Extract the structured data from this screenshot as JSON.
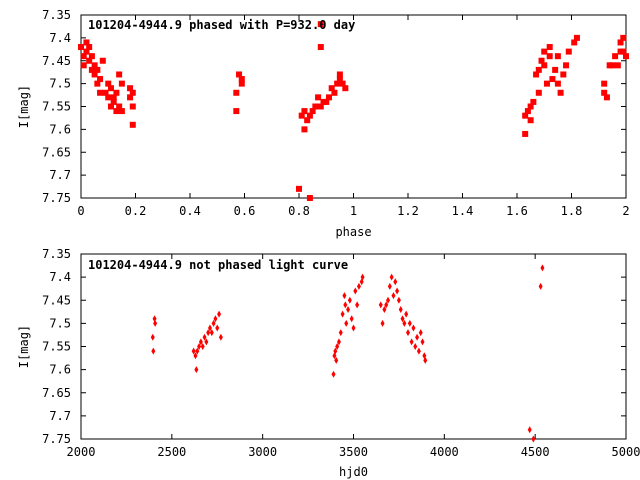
{
  "chart_data": [
    {
      "type": "scatter",
      "title": "101204-4944.9 phased with P=932.0 day",
      "xlabel": "phase",
      "ylabel": "I[mag]",
      "xlim": [
        0,
        2
      ],
      "ylim": [
        7.35,
        7.75
      ],
      "y_inverted": true,
      "x_ticks": [
        "0",
        "0.2",
        "0.4",
        "0.6",
        "0.8",
        "1",
        "1.2",
        "1.4",
        "1.6",
        "1.8",
        "2"
      ],
      "y_ticks": [
        "7.35",
        "7.4",
        "7.45",
        "7.5",
        "7.55",
        "7.6",
        "7.65",
        "7.7",
        "7.75"
      ],
      "marker_color": "#ff0000",
      "marker": "square",
      "grid": false,
      "points": [
        [
          0.0,
          7.42
        ],
        [
          0.01,
          7.44
        ],
        [
          0.01,
          7.46
        ],
        [
          0.02,
          7.41
        ],
        [
          0.02,
          7.43
        ],
        [
          0.03,
          7.45
        ],
        [
          0.03,
          7.42
        ],
        [
          0.04,
          7.47
        ],
        [
          0.04,
          7.44
        ],
        [
          0.05,
          7.46
        ],
        [
          0.05,
          7.48
        ],
        [
          0.06,
          7.47
        ],
        [
          0.06,
          7.5
        ],
        [
          0.07,
          7.49
        ],
        [
          0.07,
          7.52
        ],
        [
          0.08,
          7.45
        ],
        [
          0.09,
          7.52
        ],
        [
          0.1,
          7.5
        ],
        [
          0.1,
          7.53
        ],
        [
          0.11,
          7.51
        ],
        [
          0.11,
          7.55
        ],
        [
          0.12,
          7.54
        ],
        [
          0.12,
          7.53
        ],
        [
          0.13,
          7.52
        ],
        [
          0.13,
          7.56
        ],
        [
          0.14,
          7.48
        ],
        [
          0.14,
          7.55
        ],
        [
          0.15,
          7.56
        ],
        [
          0.15,
          7.5
        ],
        [
          0.18,
          7.51
        ],
        [
          0.18,
          7.53
        ],
        [
          0.19,
          7.52
        ],
        [
          0.19,
          7.55
        ],
        [
          0.19,
          7.59
        ],
        [
          0.57,
          7.52
        ],
        [
          0.57,
          7.56
        ],
        [
          0.58,
          7.48
        ],
        [
          0.59,
          7.49
        ],
        [
          0.59,
          7.5
        ],
        [
          0.8,
          7.73
        ],
        [
          0.81,
          7.57
        ],
        [
          0.82,
          7.56
        ],
        [
          0.82,
          7.6
        ],
        [
          0.83,
          7.58
        ],
        [
          0.84,
          7.57
        ],
        [
          0.84,
          7.75
        ],
        [
          0.85,
          7.56
        ],
        [
          0.86,
          7.55
        ],
        [
          0.87,
          7.53
        ],
        [
          0.88,
          7.55
        ],
        [
          0.88,
          7.42
        ],
        [
          0.88,
          7.37
        ],
        [
          0.89,
          7.54
        ],
        [
          0.9,
          7.54
        ],
        [
          0.91,
          7.53
        ],
        [
          0.92,
          7.51
        ],
        [
          0.93,
          7.52
        ],
        [
          0.94,
          7.5
        ],
        [
          0.95,
          7.49
        ],
        [
          0.95,
          7.48
        ],
        [
          0.96,
          7.5
        ],
        [
          0.97,
          7.51
        ],
        [
          1.63,
          7.61
        ],
        [
          1.63,
          7.57
        ],
        [
          1.64,
          7.56
        ],
        [
          1.65,
          7.58
        ],
        [
          1.65,
          7.55
        ],
        [
          1.66,
          7.54
        ],
        [
          1.67,
          7.48
        ],
        [
          1.68,
          7.52
        ],
        [
          1.68,
          7.47
        ],
        [
          1.69,
          7.45
        ],
        [
          1.7,
          7.43
        ],
        [
          1.7,
          7.46
        ],
        [
          1.71,
          7.5
        ],
        [
          1.72,
          7.44
        ],
        [
          1.72,
          7.42
        ],
        [
          1.73,
          7.49
        ],
        [
          1.74,
          7.47
        ],
        [
          1.75,
          7.44
        ],
        [
          1.75,
          7.5
        ],
        [
          1.76,
          7.52
        ],
        [
          1.77,
          7.48
        ],
        [
          1.78,
          7.46
        ],
        [
          1.79,
          7.43
        ],
        [
          1.81,
          7.41
        ],
        [
          1.82,
          7.4
        ],
        [
          1.92,
          7.52
        ],
        [
          1.92,
          7.5
        ],
        [
          1.93,
          7.53
        ],
        [
          1.94,
          7.46
        ],
        [
          1.95,
          7.46
        ],
        [
          1.96,
          7.44
        ],
        [
          1.97,
          7.46
        ],
        [
          1.98,
          7.43
        ],
        [
          1.98,
          7.41
        ],
        [
          1.99,
          7.4
        ],
        [
          1.99,
          7.43
        ],
        [
          2.0,
          7.44
        ]
      ]
    },
    {
      "type": "scatter",
      "title": "101204-4944.9 not phased light curve",
      "xlabel": "hjd0",
      "ylabel": "I[mag]",
      "xlim": [
        2000,
        5000
      ],
      "ylim": [
        7.35,
        7.75
      ],
      "y_inverted": true,
      "x_ticks": [
        "2000",
        "2500",
        "3000",
        "3500",
        "4000",
        "4500",
        "5000"
      ],
      "y_ticks": [
        "7.35",
        "7.4",
        "7.45",
        "7.5",
        "7.55",
        "7.6",
        "7.65",
        "7.7",
        "7.75"
      ],
      "marker_color": "#ff0000",
      "marker": "diamond",
      "grid": false,
      "points": [
        [
          2395,
          7.53
        ],
        [
          2398,
          7.56
        ],
        [
          2405,
          7.49
        ],
        [
          2408,
          7.5
        ],
        [
          2620,
          7.56
        ],
        [
          2630,
          7.57
        ],
        [
          2635,
          7.6
        ],
        [
          2640,
          7.56
        ],
        [
          2650,
          7.55
        ],
        [
          2660,
          7.54
        ],
        [
          2670,
          7.55
        ],
        [
          2680,
          7.53
        ],
        [
          2690,
          7.54
        ],
        [
          2700,
          7.52
        ],
        [
          2710,
          7.51
        ],
        [
          2720,
          7.52
        ],
        [
          2730,
          7.5
        ],
        [
          2740,
          7.49
        ],
        [
          2750,
          7.51
        ],
        [
          2760,
          7.48
        ],
        [
          2770,
          7.53
        ],
        [
          3390,
          7.61
        ],
        [
          3395,
          7.57
        ],
        [
          3400,
          7.56
        ],
        [
          3405,
          7.58
        ],
        [
          3410,
          7.55
        ],
        [
          3420,
          7.54
        ],
        [
          3430,
          7.52
        ],
        [
          3440,
          7.48
        ],
        [
          3450,
          7.44
        ],
        [
          3455,
          7.46
        ],
        [
          3460,
          7.5
        ],
        [
          3470,
          7.47
        ],
        [
          3480,
          7.45
        ],
        [
          3490,
          7.49
        ],
        [
          3500,
          7.51
        ],
        [
          3510,
          7.43
        ],
        [
          3520,
          7.46
        ],
        [
          3530,
          7.42
        ],
        [
          3545,
          7.41
        ],
        [
          3550,
          7.4
        ],
        [
          3650,
          7.46
        ],
        [
          3660,
          7.5
        ],
        [
          3670,
          7.47
        ],
        [
          3680,
          7.46
        ],
        [
          3690,
          7.45
        ],
        [
          3700,
          7.42
        ],
        [
          3710,
          7.4
        ],
        [
          3720,
          7.44
        ],
        [
          3730,
          7.41
        ],
        [
          3740,
          7.43
        ],
        [
          3750,
          7.45
        ],
        [
          3760,
          7.47
        ],
        [
          3770,
          7.49
        ],
        [
          3780,
          7.5
        ],
        [
          3790,
          7.48
        ],
        [
          3800,
          7.52
        ],
        [
          3810,
          7.5
        ],
        [
          3820,
          7.54
        ],
        [
          3830,
          7.51
        ],
        [
          3840,
          7.55
        ],
        [
          3850,
          7.53
        ],
        [
          3860,
          7.56
        ],
        [
          3870,
          7.52
        ],
        [
          3880,
          7.54
        ],
        [
          3890,
          7.57
        ],
        [
          3895,
          7.58
        ],
        [
          4470,
          7.73
        ],
        [
          4490,
          7.75
        ],
        [
          4530,
          7.42
        ],
        [
          4540,
          7.38
        ]
      ]
    }
  ]
}
